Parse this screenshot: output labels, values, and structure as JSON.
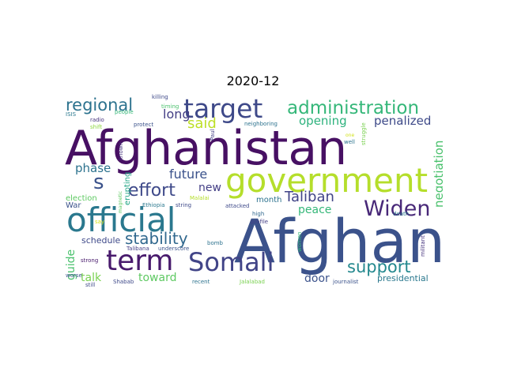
{
  "title": "2020-12",
  "words": [
    {
      "text": "Afghanistan",
      "color": "#471063"
    },
    {
      "text": "Afghan",
      "color": "#3b528b"
    },
    {
      "text": "government",
      "color": "#b5de2b"
    },
    {
      "text": "official",
      "color": "#2a788e"
    },
    {
      "text": "target",
      "color": "#3e4989"
    },
    {
      "text": "term",
      "color": "#481a6c"
    },
    {
      "text": "Somali",
      "color": "#414487"
    },
    {
      "text": "administration",
      "color": "#35b779"
    },
    {
      "text": "regional",
      "color": "#2c728e"
    },
    {
      "text": "Widen",
      "color": "#482878"
    },
    {
      "text": "support",
      "color": "#23888e"
    },
    {
      "text": "s",
      "color": "#3b528b"
    },
    {
      "text": "effort",
      "color": "#3e4989"
    },
    {
      "text": "stability",
      "color": "#31688e"
    },
    {
      "text": "Taliban",
      "color": "#414487"
    },
    {
      "text": "said",
      "color": "#bddf26"
    },
    {
      "text": "long",
      "color": "#433e85"
    },
    {
      "text": "future",
      "color": "#3b528b"
    },
    {
      "text": "opening",
      "color": "#2db27d"
    },
    {
      "text": "penalized",
      "color": "#3e4a89"
    },
    {
      "text": "phase",
      "color": "#2c728e"
    },
    {
      "text": "negotiation",
      "color": "#4ac16d"
    },
    {
      "text": "peace",
      "color": "#35b779"
    },
    {
      "text": "new",
      "color": "#433e85"
    },
    {
      "text": "door",
      "color": "#3b528b"
    },
    {
      "text": "toward",
      "color": "#5ec962"
    },
    {
      "text": "talk",
      "color": "#7ad151"
    },
    {
      "text": "guide",
      "color": "#4ac16d"
    },
    {
      "text": "schedule",
      "color": "#3e4989"
    },
    {
      "text": "presidential",
      "color": "#2a788e"
    },
    {
      "text": "month",
      "color": "#2c728e"
    },
    {
      "text": "erupting",
      "color": "#21a585"
    },
    {
      "text": "election",
      "color": "#5ec962"
    },
    {
      "text": "War",
      "color": "#3b528b"
    },
    {
      "text": "killing",
      "color": "#3e4989"
    },
    {
      "text": "timing",
      "color": "#4ac16d"
    },
    {
      "text": "ISIS",
      "color": "#2a788e"
    },
    {
      "text": "radio",
      "color": "#46337e"
    },
    {
      "text": "people",
      "color": "#35b779"
    },
    {
      "text": "shift",
      "color": "#90d743"
    },
    {
      "text": "protect",
      "color": "#3b528b"
    },
    {
      "text": "neighboring",
      "color": "#2c728e"
    },
    {
      "text": "Paul",
      "color": "#433e85"
    },
    {
      "text": "struggle",
      "color": "#7ad151"
    },
    {
      "text": "well",
      "color": "#2c728e"
    },
    {
      "text": "one",
      "color": "#d2e21b"
    },
    {
      "text": "known",
      "color": "#46337e"
    },
    {
      "text": "magnetic",
      "color": "#5ec962"
    },
    {
      "text": "Ethiopia",
      "color": "#2a788e"
    },
    {
      "text": "string",
      "color": "#3e4989"
    },
    {
      "text": "Malalai",
      "color": "#b5de2b"
    },
    {
      "text": "attacked",
      "color": "#3e4989"
    },
    {
      "text": "high",
      "color": "#31688e"
    },
    {
      "text": "profile",
      "color": "#433e85"
    },
    {
      "text": "death",
      "color": "#2a788e"
    },
    {
      "text": "worse",
      "color": "#3b528b"
    },
    {
      "text": "say",
      "color": "#d2e21b"
    },
    {
      "text": "still",
      "color": "#3e4989"
    },
    {
      "text": "Talibana",
      "color": "#433e85"
    },
    {
      "text": "underscore",
      "color": "#3b528b"
    },
    {
      "text": "bomb",
      "color": "#2c728e"
    },
    {
      "text": "strong",
      "color": "#481a6c"
    },
    {
      "text": "Shabab",
      "color": "#3e4989"
    },
    {
      "text": "recent",
      "color": "#2c728e"
    },
    {
      "text": "Jalalabad",
      "color": "#7ad151"
    },
    {
      "text": "journalist",
      "color": "#3b528b"
    },
    {
      "text": "militant",
      "color": "#46337e"
    },
    {
      "text": "women",
      "color": "#35b779"
    }
  ]
}
